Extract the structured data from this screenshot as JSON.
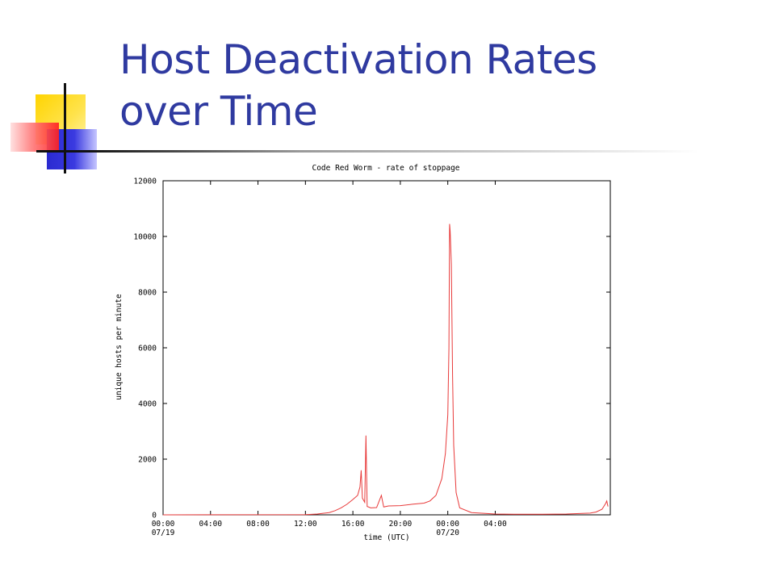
{
  "slide": {
    "title_line1": "Host Deactivation Rates",
    "title_line2": "over Time"
  },
  "chart_data": {
    "type": "line",
    "title": "Code Red Worm - rate of stoppage",
    "xlabel": "time (UTC)",
    "ylabel": "unique hosts per minute",
    "ylim": [
      0,
      12000
    ],
    "xlim": [
      0,
      37.7
    ],
    "x_unit": "hours since 07/19 00:00",
    "y_ticks": [
      0,
      2000,
      4000,
      6000,
      8000,
      10000,
      12000
    ],
    "x_ticks": [
      {
        "h": 0,
        "label": "00:00",
        "sub": "07/19"
      },
      {
        "h": 4,
        "label": "04:00",
        "sub": ""
      },
      {
        "h": 8,
        "label": "08:00",
        "sub": ""
      },
      {
        "h": 12,
        "label": "12:00",
        "sub": ""
      },
      {
        "h": 16,
        "label": "16:00",
        "sub": ""
      },
      {
        "h": 20,
        "label": "20:00",
        "sub": ""
      },
      {
        "h": 24,
        "label": "00:00",
        "sub": "07/20"
      },
      {
        "h": 28,
        "label": "04:00",
        "sub": ""
      }
    ],
    "line_color": "#e83a3a",
    "series": [
      {
        "values": [
          [
            0,
            0
          ],
          [
            12,
            10
          ],
          [
            13,
            30
          ],
          [
            14,
            80
          ],
          [
            14.5,
            150
          ],
          [
            15,
            250
          ],
          [
            15.5,
            380
          ],
          [
            16,
            550
          ],
          [
            16.4,
            700
          ],
          [
            16.6,
            1000
          ],
          [
            16.7,
            1600
          ],
          [
            16.8,
            600
          ],
          [
            17.0,
            450
          ],
          [
            17.1,
            2850
          ],
          [
            17.2,
            300
          ],
          [
            17.5,
            250
          ],
          [
            18,
            260
          ],
          [
            18.4,
            700
          ],
          [
            18.6,
            280
          ],
          [
            19,
            320
          ],
          [
            20,
            330
          ],
          [
            21,
            380
          ],
          [
            22,
            420
          ],
          [
            22.5,
            500
          ],
          [
            23,
            700
          ],
          [
            23.5,
            1300
          ],
          [
            23.8,
            2200
          ],
          [
            24.0,
            3600
          ],
          [
            24.1,
            6000
          ],
          [
            24.15,
            10450
          ],
          [
            24.2,
            10200
          ],
          [
            24.3,
            9000
          ],
          [
            24.4,
            5000
          ],
          [
            24.5,
            2500
          ],
          [
            24.7,
            800
          ],
          [
            25,
            250
          ],
          [
            26,
            80
          ],
          [
            28,
            30
          ],
          [
            30,
            20
          ],
          [
            32,
            20
          ],
          [
            34,
            30
          ],
          [
            36,
            60
          ],
          [
            36.5,
            100
          ],
          [
            37.0,
            200
          ],
          [
            37.3,
            400
          ],
          [
            37.4,
            500
          ],
          [
            37.5,
            300
          ]
        ]
      }
    ]
  }
}
